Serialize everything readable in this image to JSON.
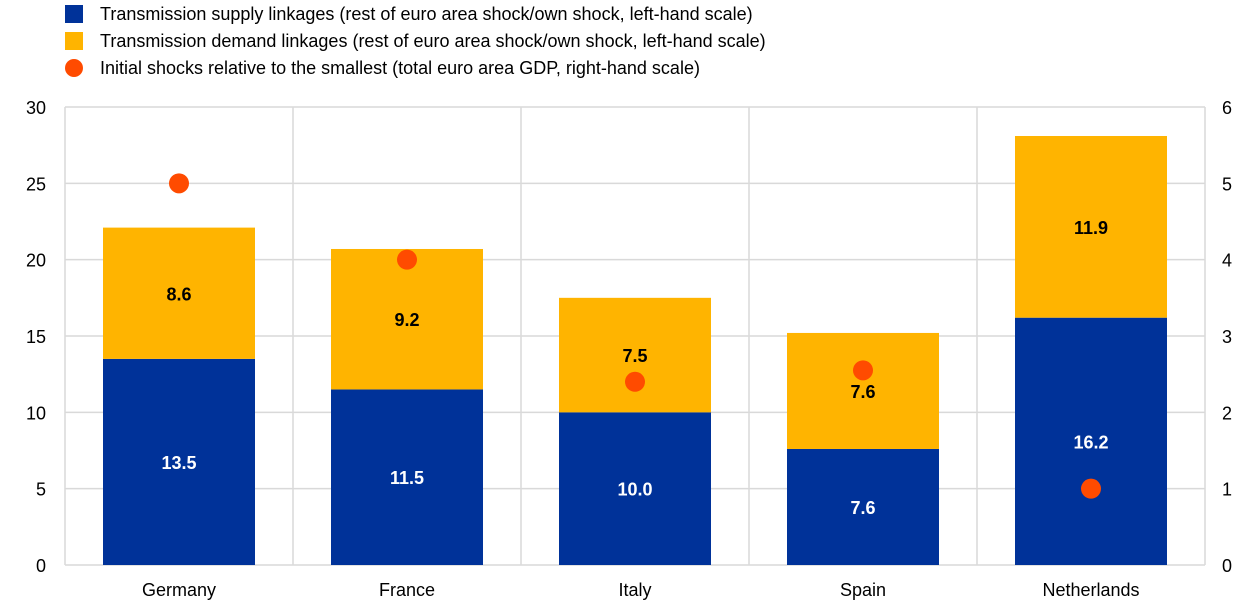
{
  "chart_data": {
    "type": "bar",
    "stacked": true,
    "title": "",
    "categories": [
      "Germany",
      "France",
      "Italy",
      "Spain",
      "Netherlands"
    ],
    "series": [
      {
        "name": "Transmission supply linkages (rest of euro area shock/own shock, left-hand scale)",
        "type": "bar",
        "axis": "left",
        "color": "#003299",
        "label_color": "#ffffff",
        "values": [
          13.5,
          11.5,
          10.0,
          7.6,
          16.2
        ],
        "labels": [
          "13.5",
          "11.5",
          "10.0",
          "7.6",
          "16.2"
        ]
      },
      {
        "name": "Transmission demand linkages (rest of euro area shock/own shock, left-hand scale)",
        "type": "bar",
        "axis": "left",
        "color": "#FFB400",
        "label_color": "#000000",
        "values": [
          8.6,
          9.2,
          7.5,
          7.6,
          11.9
        ],
        "labels": [
          "8.6",
          "9.2",
          "7.5",
          "7.6",
          "11.9"
        ]
      },
      {
        "name": "Initial shocks relative to the smallest (total euro area GDP, right-hand scale)",
        "type": "scatter",
        "axis": "right",
        "color": "#FF4B00",
        "values": [
          5.0,
          4.0,
          2.4,
          2.55,
          1.0
        ]
      }
    ],
    "y_left": {
      "min": 0,
      "max": 30,
      "ticks": [
        0,
        5,
        10,
        15,
        20,
        25,
        30
      ]
    },
    "y_right": {
      "min": 0,
      "max": 6,
      "ticks": [
        0,
        1,
        2,
        3,
        4,
        5,
        6
      ]
    },
    "grid": true,
    "legend_position": "top-left",
    "xlabel": "",
    "ylabel": ""
  }
}
